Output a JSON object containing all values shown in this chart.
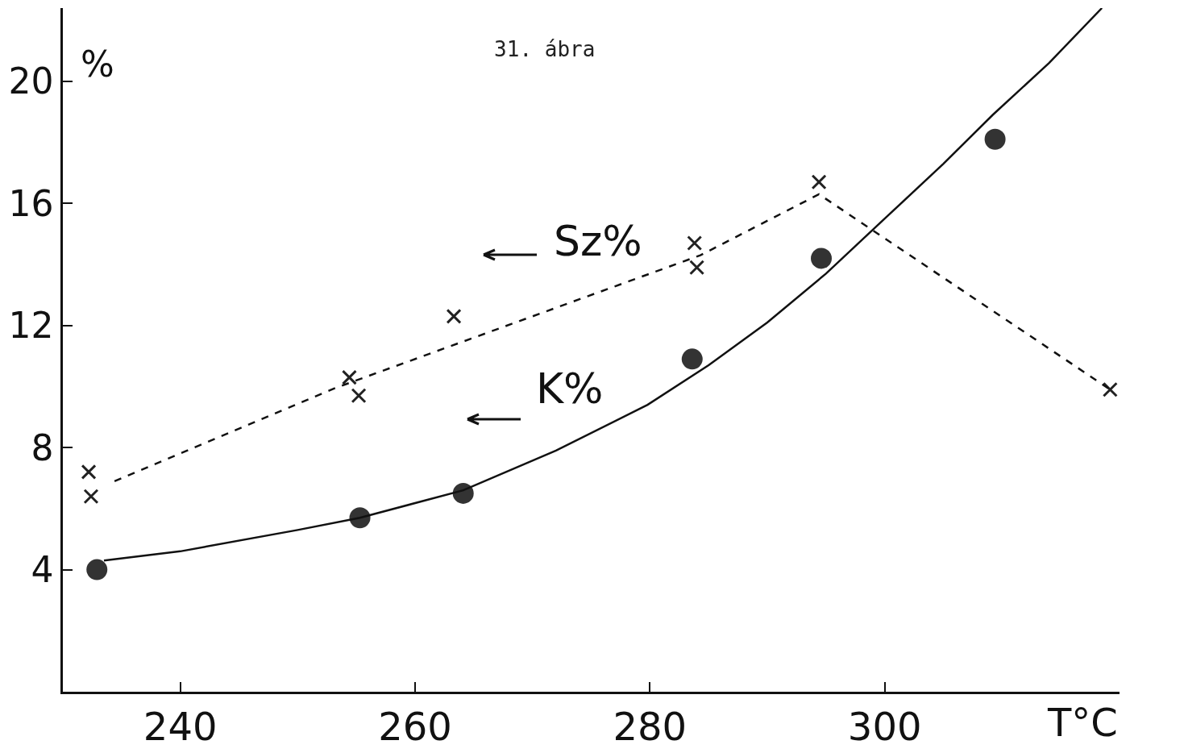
{
  "chart_data": {
    "type": "scatter",
    "title": "31. ábra",
    "xlabel": "T°C",
    "ylabel": "%",
    "xlim": [
      230,
      320
    ],
    "ylim": [
      0,
      22.4
    ],
    "xticks": [
      240,
      260,
      280,
      300
    ],
    "yticks": [
      4,
      8,
      12,
      16,
      20
    ],
    "grid": false,
    "series": [
      {
        "marker": "circle",
        "color": "#333333",
        "x": [
          232.9,
          255.3,
          264.1,
          283.6,
          294.6,
          309.4
        ],
        "values": [
          4.0,
          5.7,
          6.5,
          10.9,
          14.2,
          18.1
        ]
      },
      {
        "marker": "cross",
        "color": "#222222",
        "x": [
          232.2,
          232.4,
          254.4,
          255.2,
          263.3,
          283.8,
          284.0,
          294.4,
          319.2
        ],
        "values": [
          7.2,
          6.4,
          10.3,
          9.7,
          12.3,
          14.7,
          13.9,
          16.7,
          9.9
        ]
      },
      {
        "type": "line",
        "marker": "none",
        "line_style": "solid",
        "color": "#111111",
        "x": [
          233.5,
          240,
          250,
          255.3,
          264.1,
          272,
          279.8,
          285,
          290,
          295,
          300,
          305,
          309.2,
          314,
          318.5
        ],
        "values": [
          4.3,
          4.6,
          5.3,
          5.7,
          6.6,
          7.9,
          9.4,
          10.7,
          12.1,
          13.7,
          15.5,
          17.3,
          18.9,
          20.6,
          22.4
        ]
      },
      {
        "type": "line",
        "marker": "none",
        "line_style": "dashed",
        "color": "#111111",
        "x": [
          234.4,
          253.2,
          284.3,
          294.4,
          319.2
        ],
        "values": [
          6.9,
          9.95,
          14.3,
          16.3,
          9.9
        ]
      }
    ],
    "annotations": [
      "Sz%",
      "K%"
    ]
  }
}
